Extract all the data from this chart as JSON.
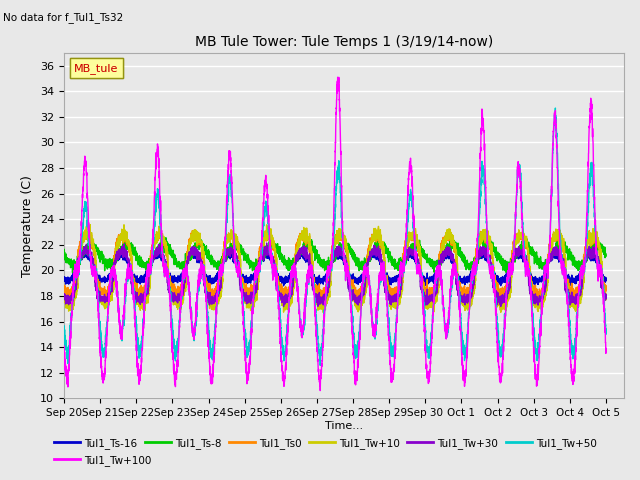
{
  "title": "MB Tule Tower: Tule Temps 1 (3/19/14-now)",
  "no_data_label": "No data for f_Tul1_Ts32",
  "ylabel": "Temperature (C)",
  "xlabel": "Time...",
  "ylim": [
    10,
    37
  ],
  "xlim_days": [
    0,
    15.5
  ],
  "x_tick_labels": [
    "Sep 20",
    "Sep 21",
    "Sep 22",
    "Sep 23",
    "Sep 24",
    "Sep 25",
    "Sep 26",
    "Sep 27",
    "Sep 28",
    "Sep 29",
    "Sep 30",
    "Oct 1",
    "Oct 2",
    "Oct 3",
    "Oct 4",
    "Oct 5"
  ],
  "legend_box_label": "MB_tule",
  "legend_entries": [
    {
      "label": "Tul1_Ts-16",
      "color": "#0000cc"
    },
    {
      "label": "Tul1_Ts-8",
      "color": "#00cc00"
    },
    {
      "label": "Tul1_Ts0",
      "color": "#ff8800"
    },
    {
      "label": "Tul1_Tw+10",
      "color": "#cccc00"
    },
    {
      "label": "Tul1_Tw+30",
      "color": "#8800cc"
    },
    {
      "label": "Tul1_Tw+50",
      "color": "#00cccc"
    },
    {
      "label": "Tul1_Tw+100",
      "color": "#ff00ff"
    }
  ],
  "bg_color": "#e8e8e8",
  "plot_bg_color": "#e8e8e8",
  "grid_color": "#ffffff",
  "num_days": 15,
  "samples_per_day": 288,
  "day_peaks_magenta": [
    28.5,
    15,
    29.5,
    15,
    29,
    27,
    15,
    35,
    15,
    28.5,
    15,
    32,
    28,
    32,
    33
  ],
  "day_peaks_cyan": [
    25,
    15,
    26,
    15,
    27,
    25,
    15,
    28,
    15,
    26,
    15,
    28,
    28,
    32,
    28
  ],
  "base_blue": 20.0,
  "base_green": 21.0,
  "base_orange": 20.5,
  "base_yellow": 20.2,
  "base_purple": 19.8
}
